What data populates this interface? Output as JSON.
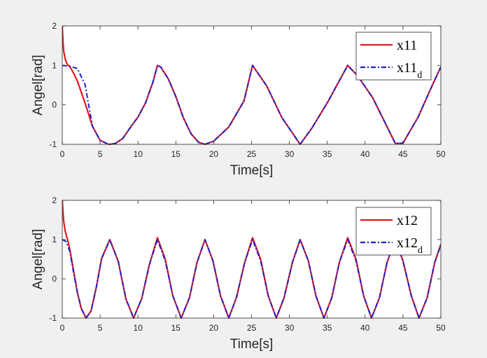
{
  "chart_data": [
    {
      "type": "line",
      "xlabel": "Time[s]",
      "ylabel": "Angel[rad]",
      "xlim": [
        0,
        50
      ],
      "ylim": [
        -1,
        2
      ],
      "xticks": [
        "0",
        "5",
        "10",
        "15",
        "20",
        "25",
        "30",
        "35",
        "40",
        "45",
        "50"
      ],
      "yticks": [
        "-1",
        "0",
        "1",
        "2"
      ],
      "grid": false,
      "legend_position": "top-right",
      "colors": {
        "actual": "#e31a1c",
        "desired": "#1f1fcc"
      },
      "legend": [
        {
          "base": "x11",
          "sub": ""
        },
        {
          "base": "x11",
          "sub": "d"
        }
      ],
      "series": [
        {
          "name": "x11",
          "style": "solid",
          "x": [
            0,
            0.1,
            0.2,
            0.4,
            0.6,
            0.8,
            1.0,
            1.5,
            2,
            3,
            4,
            5,
            6,
            6.28,
            7,
            8,
            9,
            10,
            11,
            12,
            12.57,
            13,
            14,
            15,
            16,
            17,
            18,
            18.85,
            20,
            22,
            24,
            25.13,
            27,
            29,
            31.42,
            33,
            35,
            37.7,
            39,
            41,
            44,
            45,
            47,
            49,
            50
          ],
          "y": [
            2.0,
            1.6,
            1.35,
            1.15,
            1.05,
            1.0,
            0.97,
            0.8,
            0.6,
            0.05,
            -0.55,
            -0.9,
            -0.99,
            -1.0,
            -0.98,
            -0.85,
            -0.57,
            -0.31,
            0.05,
            0.59,
            1.0,
            0.96,
            0.66,
            0.21,
            -0.33,
            -0.73,
            -0.95,
            -1.0,
            -0.92,
            -0.56,
            0.1,
            1.0,
            0.48,
            -0.32,
            -1.0,
            -0.58,
            0.05,
            1.0,
            0.74,
            0.18,
            -0.98,
            -0.97,
            -0.31,
            0.55,
            0.96
          ]
        },
        {
          "name": "x11_d",
          "style": "dash-dot",
          "x": [
            0,
            1,
            2,
            3,
            4,
            5,
            6,
            6.28,
            7,
            8,
            9,
            10,
            11,
            12,
            12.57,
            13,
            14,
            15,
            16,
            17,
            18,
            18.85,
            20,
            22,
            24,
            25.13,
            27,
            29,
            31.42,
            33,
            35,
            37.7,
            39,
            41,
            44,
            45,
            47,
            49,
            50
          ],
          "y": [
            1.0,
            0.98,
            0.92,
            0.52,
            -0.55,
            -0.9,
            -0.99,
            -1.0,
            -0.98,
            -0.85,
            -0.57,
            -0.31,
            0.05,
            0.59,
            1.0,
            0.96,
            0.66,
            0.21,
            -0.33,
            -0.73,
            -0.95,
            -1.0,
            -0.92,
            -0.56,
            0.1,
            1.0,
            0.48,
            -0.32,
            -1.0,
            -0.58,
            0.05,
            1.0,
            0.74,
            0.18,
            -0.98,
            -0.97,
            -0.31,
            0.55,
            0.96
          ]
        }
      ]
    },
    {
      "type": "line",
      "xlabel": "Time[s]",
      "ylabel": "Angel[rad]",
      "xlim": [
        0,
        50
      ],
      "ylim": [
        -1,
        2
      ],
      "xticks": [
        "0",
        "5",
        "10",
        "15",
        "20",
        "25",
        "30",
        "35",
        "40",
        "45",
        "50"
      ],
      "yticks": [
        "-1",
        "0",
        "1",
        "2"
      ],
      "grid": false,
      "legend_position": "top-right",
      "colors": {
        "actual": "#e31a1c",
        "desired": "#1f1fcc"
      },
      "legend": [
        {
          "base": "x12",
          "sub": ""
        },
        {
          "base": "x12",
          "sub": "d"
        }
      ],
      "series": [
        {
          "name": "x12",
          "style": "solid",
          "x": [
            0,
            0.1,
            0.2,
            0.4,
            0.7,
            1.0,
            1.5,
            2.0,
            2.5,
            3.14,
            3.8,
            4.5,
            5.2,
            6.28,
            7.4,
            8.4,
            9.42,
            10.5,
            11.5,
            12.57,
            13.6,
            14.6,
            15.71,
            16.8,
            17.8,
            18.85,
            19.9,
            20.9,
            21.99,
            23.0,
            24.1,
            25.13,
            26.2,
            27.2,
            28.27,
            29.3,
            30.4,
            31.42,
            32.5,
            33.5,
            34.56,
            35.6,
            36.6,
            37.7,
            38.8,
            39.8,
            40.84,
            41.9,
            42.9,
            43.98,
            45.0,
            46.1,
            47.12,
            48.2,
            49.2,
            50
          ],
          "y": [
            2.0,
            1.7,
            1.45,
            1.2,
            1.0,
            0.75,
            0.2,
            -0.35,
            -0.75,
            -1.0,
            -0.82,
            -0.21,
            0.52,
            1.0,
            0.44,
            -0.51,
            -1.0,
            -0.5,
            0.36,
            1.05,
            0.5,
            -0.43,
            -1.0,
            -0.48,
            0.42,
            1.0,
            0.46,
            -0.43,
            -1.0,
            -0.48,
            0.42,
            1.05,
            0.5,
            -0.43,
            -1.0,
            -0.48,
            0.42,
            1.0,
            0.46,
            -0.43,
            -1.0,
            -0.48,
            0.42,
            1.05,
            0.5,
            -0.43,
            -1.0,
            -0.48,
            0.42,
            1.0,
            0.46,
            -0.43,
            -1.0,
            -0.48,
            0.42,
            0.88
          ]
        },
        {
          "name": "x12_d",
          "style": "dash-dot",
          "x": [
            0,
            0.5,
            1.0,
            1.5,
            2.0,
            2.5,
            3.14,
            3.8,
            4.5,
            5.2,
            6.28,
            7.4,
            8.4,
            9.42,
            10.5,
            11.5,
            12.57,
            13.6,
            14.6,
            15.71,
            16.8,
            17.8,
            18.85,
            19.9,
            20.9,
            21.99,
            23.0,
            24.1,
            25.13,
            26.2,
            27.2,
            28.27,
            29.3,
            30.4,
            31.42,
            32.5,
            33.5,
            34.56,
            35.6,
            36.6,
            37.7,
            38.8,
            39.8,
            40.84,
            41.9,
            42.9,
            43.98,
            45.0,
            46.1,
            47.12,
            48.2,
            49.2,
            50
          ],
          "y": [
            1.0,
            0.95,
            0.7,
            0.15,
            -0.35,
            -0.75,
            -1.0,
            -0.82,
            -0.21,
            0.52,
            1.0,
            0.44,
            -0.51,
            -1.0,
            -0.5,
            0.36,
            1.0,
            0.46,
            -0.43,
            -1.0,
            -0.48,
            0.42,
            1.0,
            0.46,
            -0.43,
            -1.0,
            -0.48,
            0.42,
            1.0,
            0.46,
            -0.43,
            -1.0,
            -0.48,
            0.42,
            1.0,
            0.46,
            -0.43,
            -1.0,
            -0.48,
            0.42,
            1.0,
            0.46,
            -0.43,
            -1.0,
            -0.48,
            0.42,
            1.0,
            0.46,
            -0.43,
            -1.0,
            -0.48,
            0.42,
            0.86
          ]
        }
      ]
    }
  ]
}
